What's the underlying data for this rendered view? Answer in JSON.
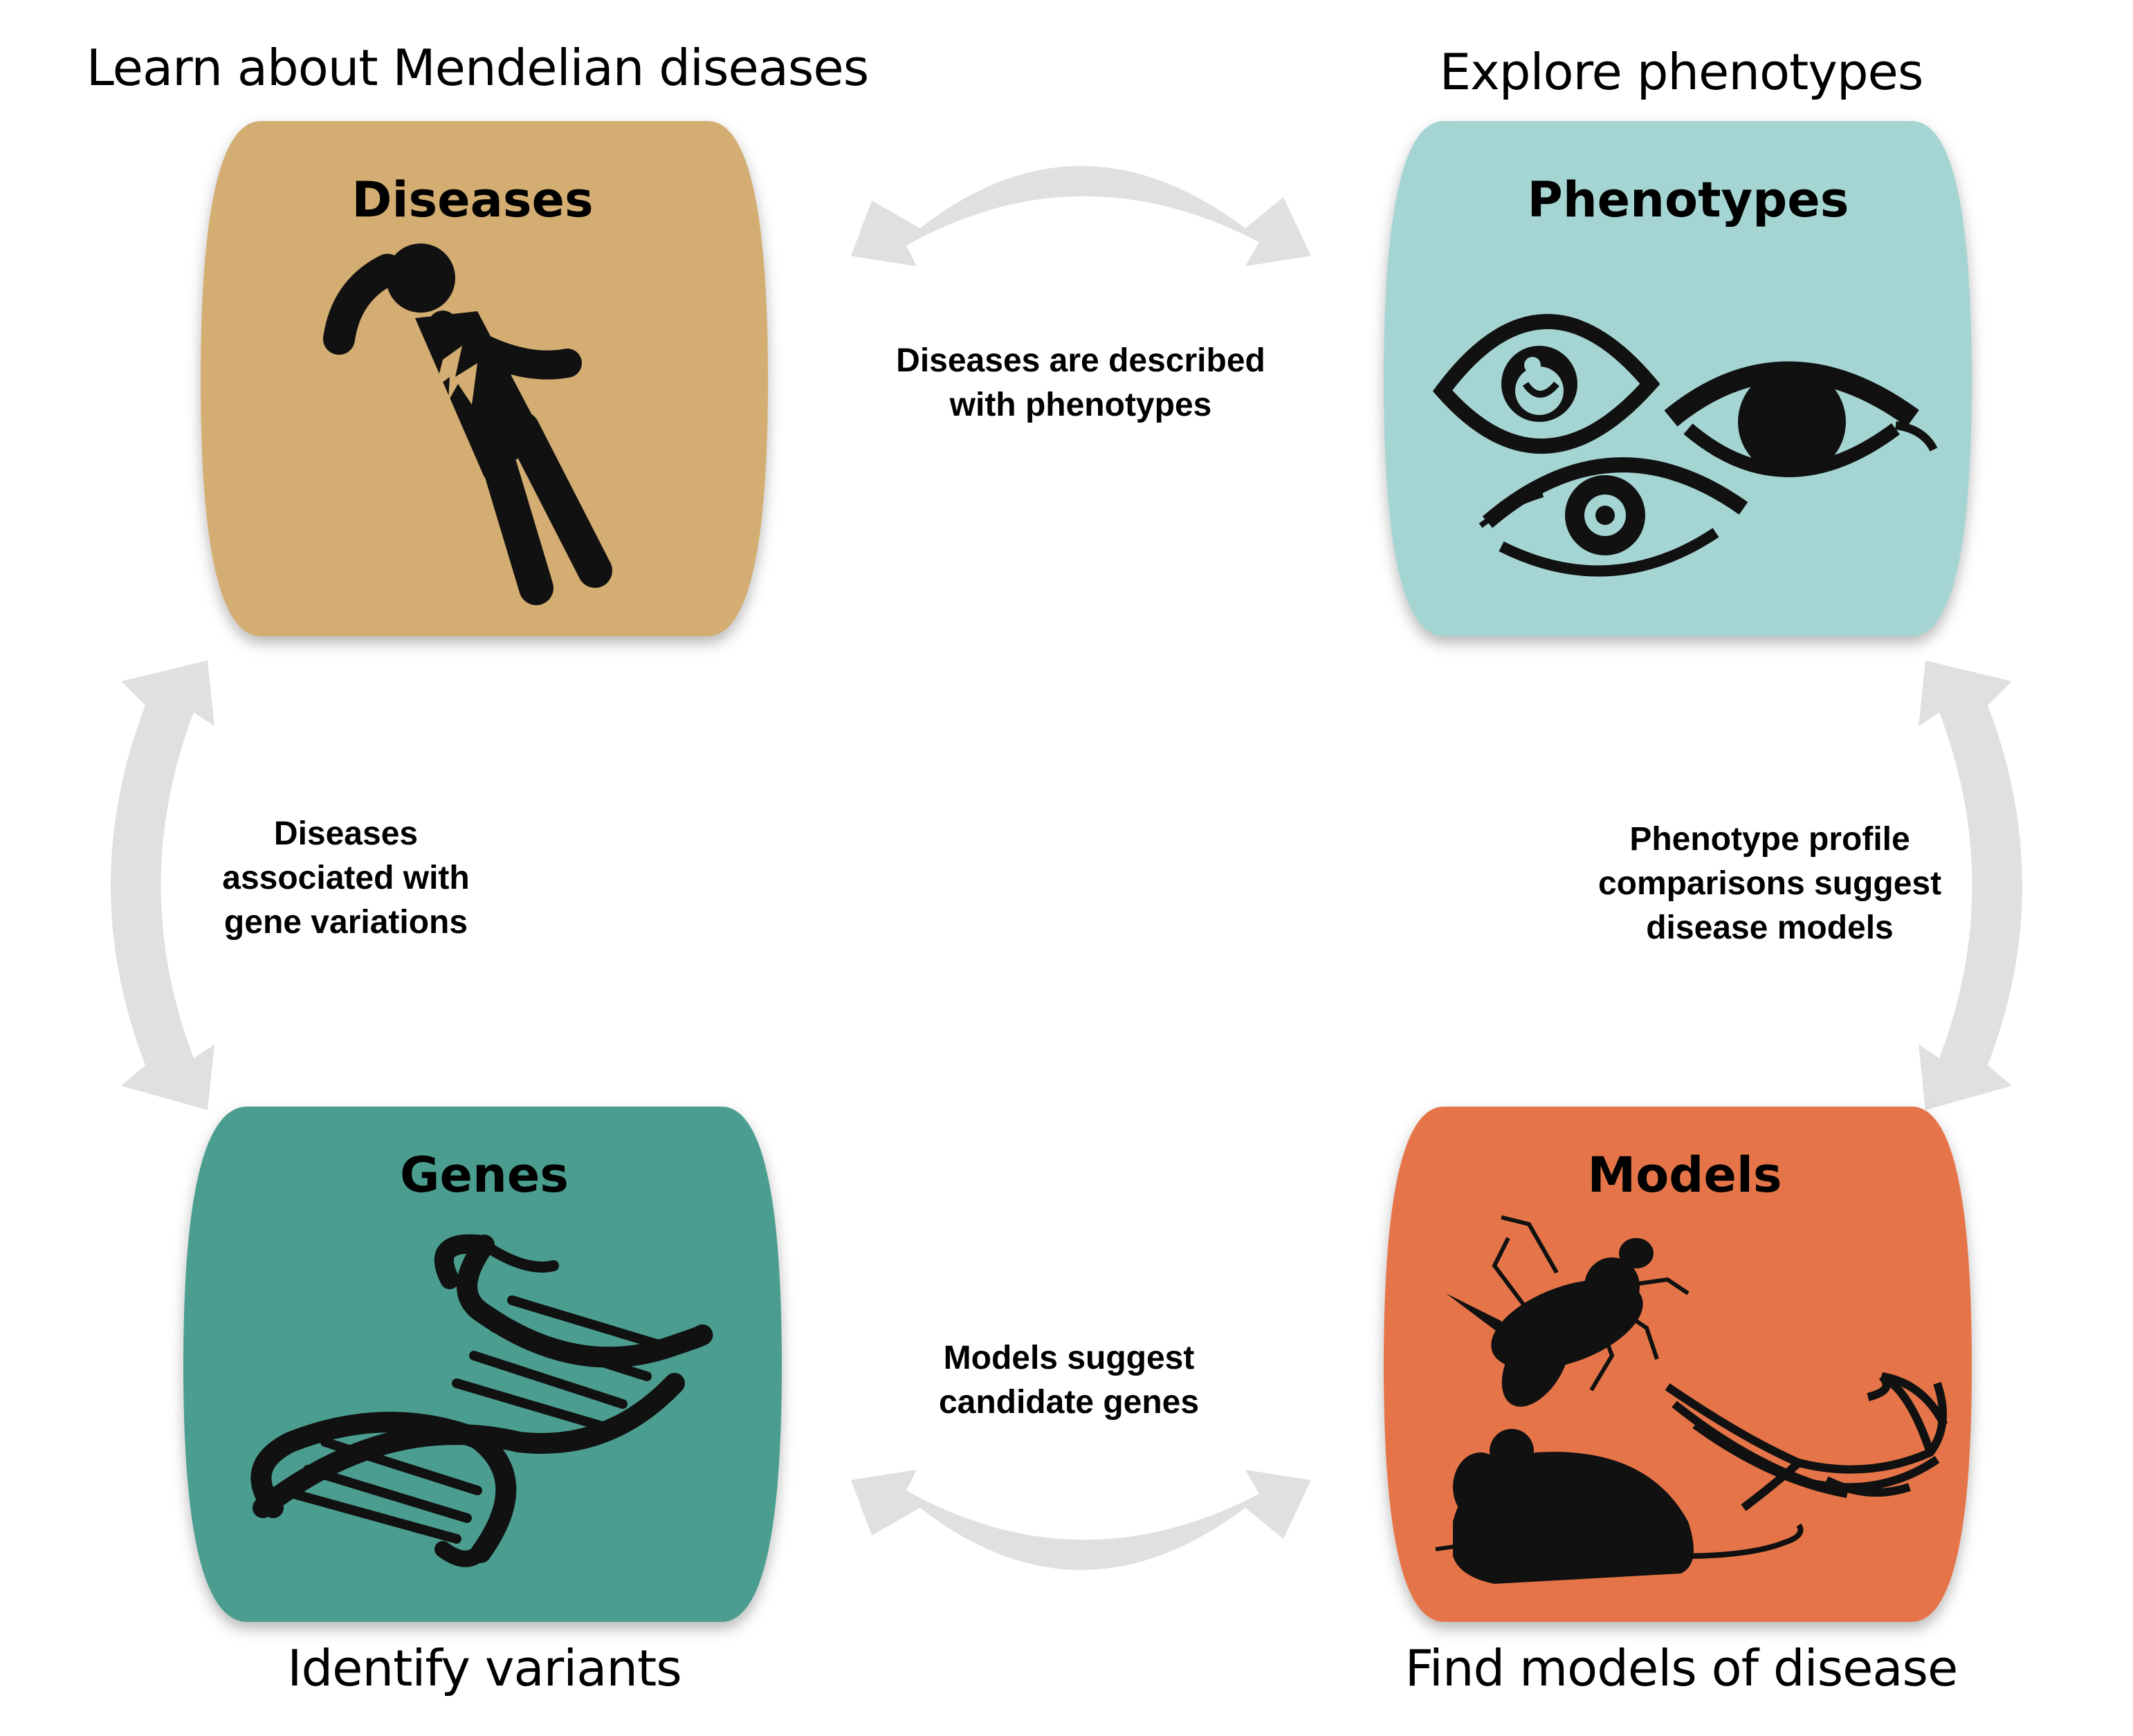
{
  "captions": {
    "diseases": "Learn about Mendelian diseases",
    "phenotypes": "Explore phenotypes",
    "genes": "Identify variants",
    "models": "Find models of disease"
  },
  "nodes": {
    "diseases": {
      "title": "Diseases",
      "color": "#d3ad72",
      "icon": "person-in-pain-icon"
    },
    "phenotypes": {
      "title": "Phenotypes",
      "color": "#a5d5d2",
      "icon": "eyes-icon"
    },
    "genes": {
      "title": "Genes",
      "color": "#4c9e8f",
      "icon": "dna-icon"
    },
    "models": {
      "title": "Models",
      "color": "#e5744a",
      "icon": "model-organisms-icon"
    }
  },
  "edges": {
    "diseases_phenotypes": [
      "Diseases are described",
      "with phenotypes"
    ],
    "diseases_genes": [
      "Diseases",
      "associated with",
      "gene variations"
    ],
    "phenotypes_models": [
      "Phenotype profile",
      "comparisons suggest",
      "disease models"
    ],
    "models_genes": [
      "Models suggest",
      "candidate genes"
    ]
  },
  "colors": {
    "arrow": "#e0e0e0",
    "icon": "#111111",
    "accent_bolt": "#d3ad72"
  }
}
